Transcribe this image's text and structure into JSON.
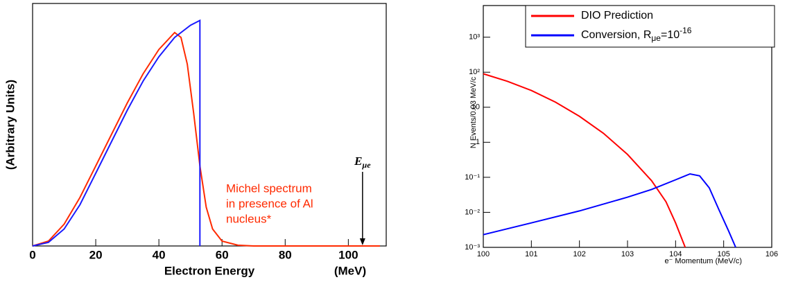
{
  "chart_data": [
    {
      "type": "line",
      "ylabel": "(Arbitrary Units)",
      "xlabel": "Electron Energy",
      "x_unit": "(MeV)",
      "xlim": [
        0,
        112
      ],
      "xticks": [
        0,
        20,
        40,
        60,
        80,
        100
      ],
      "ylim": [
        0,
        100
      ],
      "series": [
        {
          "color": "#ff2a00",
          "x": [
            0,
            5,
            10,
            15,
            20,
            25,
            30,
            35,
            40,
            45,
            47,
            49,
            51,
            53,
            55,
            57,
            60,
            65,
            70,
            110
          ],
          "values": [
            0,
            2,
            9,
            20,
            33,
            46,
            59,
            71,
            81,
            88,
            86,
            75,
            55,
            33,
            16,
            7,
            2,
            0.3,
            0,
            0
          ]
        },
        {
          "color": "#1a1aff",
          "x": [
            0,
            5,
            10,
            15,
            20,
            25,
            30,
            35,
            40,
            45,
            50,
            53,
            53
          ],
          "values": [
            0,
            1.5,
            7,
            17,
            30,
            43,
            56,
            68,
            78,
            86,
            91,
            93,
            0
          ]
        }
      ],
      "annotation": {
        "lines": [
          "Michel spectrum",
          "in presence of Al",
          "nucleus*"
        ],
        "color": "#ff2a00"
      },
      "arrow": {
        "text": "E",
        "subscript": "μe",
        "x": 104.5
      }
    },
    {
      "type": "line",
      "ylabel": "N Events/0.03 MeV/c",
      "xlabel": "e⁻ Momentum (MeV/c)",
      "log_y": true,
      "xlim": [
        100,
        106
      ],
      "xticks": [
        100,
        101,
        102,
        103,
        104,
        105,
        106
      ],
      "ylim": [
        0.001,
        8000
      ],
      "yticks": [
        {
          "value": 0.001,
          "label": "10⁻³"
        },
        {
          "value": 0.01,
          "label": "10⁻²"
        },
        {
          "value": 0.1,
          "label": "10⁻¹"
        },
        1,
        10,
        {
          "value": 100,
          "label": "10²"
        },
        {
          "value": 1000,
          "label": "10³"
        }
      ],
      "series": [
        {
          "name": "DIO Prediction",
          "color": "#ff0000",
          "x": [
            100,
            100.5,
            101,
            101.5,
            102,
            102.5,
            103,
            103.5,
            103.8,
            104,
            104.15,
            104.2
          ],
          "values": [
            90,
            55,
            30,
            14,
            5.5,
            1.8,
            0.45,
            0.08,
            0.02,
            0.005,
            0.0015,
            0.001
          ]
        },
        {
          "name": "Conversion, R",
          "subscript": "μe",
          "suffix": "=10",
          "superscript": "-16",
          "color": "#0000ff",
          "x": [
            100,
            101,
            102,
            103,
            103.5,
            104,
            104.3,
            104.5,
            104.7,
            104.9,
            105.1,
            105.25
          ],
          "values": [
            0.0023,
            0.005,
            0.011,
            0.027,
            0.045,
            0.085,
            0.125,
            0.11,
            0.05,
            0.012,
            0.003,
            0.001
          ]
        }
      ]
    }
  ]
}
